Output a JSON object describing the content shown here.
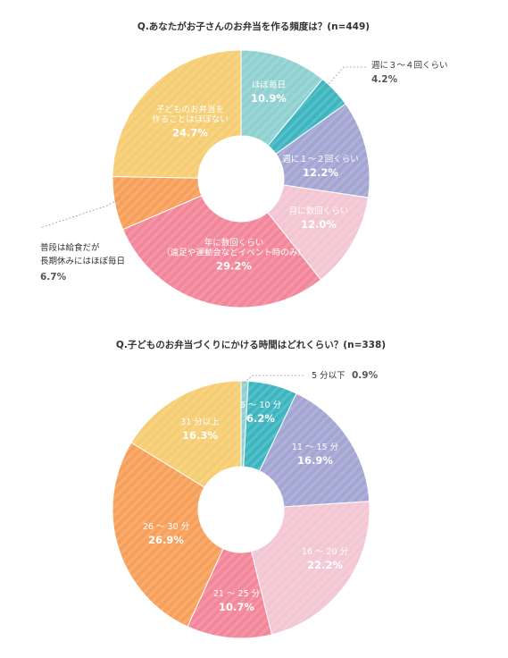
{
  "chart_data": [
    {
      "type": "pie",
      "title": "Q.あなたがお子さんのお弁当を作る頻度は？(n=449)",
      "slices": [
        {
          "label": [
            "ほぼ毎日"
          ],
          "value_text": "10.9%",
          "value": 10.9,
          "color": "#8fd0d0",
          "label_position": "inside"
        },
        {
          "label": [
            "週に３～４回くらい"
          ],
          "value_text": "4.2%",
          "value": 4.2,
          "color": "#3db5c0",
          "label_position": "outside"
        },
        {
          "label": [
            "週に１～２回くらい"
          ],
          "value_text": "12.2%",
          "value": 12.2,
          "color": "#a3a5d3",
          "label_position": "inside"
        },
        {
          "label": [
            "月に数回くらい"
          ],
          "value_text": "12.0%",
          "value": 12.0,
          "color": "#f2c6d2",
          "label_position": "inside"
        },
        {
          "label": [
            "年に数回くらい",
            "（遠足や運動会などイベント時のみ）"
          ],
          "value_text": "29.2%",
          "value": 29.2,
          "color": "#f2869a",
          "label_position": "inside"
        },
        {
          "label": [
            "普段は給食だが",
            "長期休みにはほぼ毎日"
          ],
          "value_text": "6.7%",
          "value": 6.7,
          "color": "#f7a05a",
          "label_position": "outside"
        },
        {
          "label": [
            "子どものお弁当を",
            "作ることはほぼない"
          ],
          "value_text": "24.7%",
          "value": 24.7,
          "color": "#f6cd72",
          "label_position": "inside"
        }
      ]
    },
    {
      "type": "pie",
      "title": "Q.子どものお弁当づくりにかける時間はどれくらい？(n=338)",
      "slices": [
        {
          "label": [
            "5 分以下"
          ],
          "value_text": "0.9%",
          "value": 0.9,
          "color": "#8fd0d0",
          "label_position": "outside"
        },
        {
          "label": [
            "6 ～ 10 分"
          ],
          "value_text": "6.2%",
          "value": 6.2,
          "color": "#3db5c0",
          "label_position": "inside"
        },
        {
          "label": [
            "11 ～ 15 分"
          ],
          "value_text": "16.9%",
          "value": 16.9,
          "color": "#a3a5d3",
          "label_position": "inside"
        },
        {
          "label": [
            "16 ～ 20 分"
          ],
          "value_text": "22.2%",
          "value": 22.2,
          "color": "#f2c6d2",
          "label_position": "inside"
        },
        {
          "label": [
            "21 ～ 25 分"
          ],
          "value_text": "10.7%",
          "value": 10.7,
          "color": "#f2869a",
          "label_position": "inside"
        },
        {
          "label": [
            "26 ～ 30 分"
          ],
          "value_text": "26.9%",
          "value": 26.9,
          "color": "#f7a05a",
          "label_position": "inside"
        },
        {
          "label": [
            "31 分以上"
          ],
          "value_text": "16.3%",
          "value": 16.3,
          "color": "#f6cd72",
          "label_position": "inside"
        }
      ]
    }
  ]
}
